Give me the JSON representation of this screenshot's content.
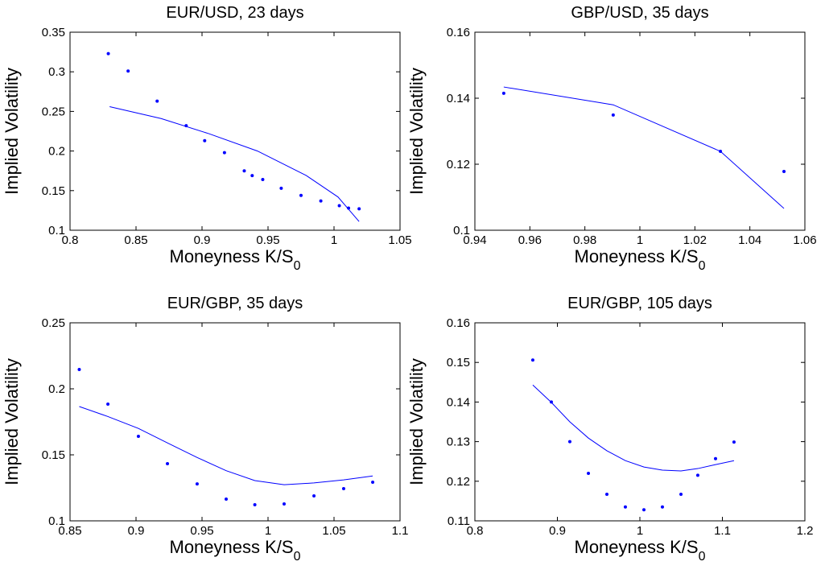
{
  "chart_data": [
    {
      "type": "scatter",
      "title": "EUR/USD, 23 days",
      "x_label": "Moneyness K/S",
      "x_label_subscript": "0",
      "y_label": "Implied Volatility",
      "xlim": [
        0.8,
        1.05
      ],
      "xticks": [
        0.8,
        0.85,
        0.9,
        0.95,
        1,
        1.05
      ],
      "ylim": [
        0.1,
        0.35
      ],
      "yticks": [
        0.1,
        0.15,
        0.2,
        0.25,
        0.3,
        0.35
      ],
      "series": [
        {
          "mode": "markers",
          "color": "#0000ff",
          "x": [
            0.829,
            0.844,
            0.866,
            0.888,
            0.902,
            0.917,
            0.932,
            0.938,
            0.946,
            0.96,
            0.975,
            0.99,
            1.004,
            1.011,
            1.019
          ],
          "values": [
            0.323,
            0.301,
            0.263,
            0.232,
            0.213,
            0.198,
            0.175,
            0.169,
            0.164,
            0.153,
            0.144,
            0.137,
            0.131,
            0.128,
            0.127
          ]
        },
        {
          "mode": "line",
          "color": "#0000ff",
          "x": [
            0.83,
            0.869,
            0.905,
            0.942,
            0.979,
            1.003,
            1.019
          ],
          "values": [
            0.256,
            0.241,
            0.222,
            0.2,
            0.169,
            0.142,
            0.111
          ]
        }
      ]
    },
    {
      "type": "scatter",
      "title": "GBP/USD, 35 days",
      "x_label": "Moneyness K/S",
      "x_label_subscript": "0",
      "y_label": "Implied Volatility",
      "xlim": [
        0.94,
        1.06
      ],
      "xticks": [
        0.94,
        0.96,
        0.98,
        1,
        1.02,
        1.04,
        1.06
      ],
      "ylim": [
        0.1,
        0.16
      ],
      "yticks": [
        0.1,
        0.12,
        0.14,
        0.16
      ],
      "series": [
        {
          "mode": "markers",
          "color": "#0000ff",
          "x": [
            0.9505,
            0.9903,
            1.0293,
            1.0524
          ],
          "values": [
            0.1415,
            0.1349,
            0.1239,
            0.1178
          ]
        },
        {
          "mode": "line",
          "color": "#0000ff",
          "x": [
            0.9505,
            0.9903,
            1.0293,
            1.0524
          ],
          "values": [
            0.1434,
            0.138,
            0.1239,
            0.1066
          ]
        }
      ]
    },
    {
      "type": "scatter",
      "title": "EUR/GBP, 35 days",
      "x_label": "Moneyness K/S",
      "x_label_subscript": "0",
      "y_label": "Implied Volatility",
      "xlim": [
        0.85,
        1.1
      ],
      "xticks": [
        0.85,
        0.9,
        0.95,
        1,
        1.05,
        1.1
      ],
      "ylim": [
        0.1,
        0.25
      ],
      "yticks": [
        0.1,
        0.15,
        0.2,
        0.25
      ],
      "series": [
        {
          "mode": "markers",
          "color": "#0000ff",
          "x": [
            0.857,
            0.8787,
            0.9018,
            0.9238,
            0.9463,
            0.9683,
            0.99,
            1.0122,
            1.0348,
            1.0573,
            1.0793
          ],
          "values": [
            0.2146,
            0.1884,
            0.164,
            0.1433,
            0.128,
            0.1165,
            0.1122,
            0.1128,
            0.1189,
            0.1244,
            0.1293
          ]
        },
        {
          "mode": "line",
          "color": "#0000ff",
          "x": [
            0.857,
            0.8787,
            0.9018,
            0.9238,
            0.9463,
            0.9683,
            0.99,
            1.0122,
            1.0348,
            1.0573,
            1.0793
          ],
          "values": [
            0.1866,
            0.179,
            0.17,
            0.159,
            0.148,
            0.138,
            0.1305,
            0.1274,
            0.1287,
            0.131,
            0.134
          ]
        }
      ]
    },
    {
      "type": "scatter",
      "title": "EUR/GBP, 105 days",
      "x_label": "Moneyness K/S",
      "x_label_subscript": "0",
      "y_label": "Implied Volatility",
      "xlim": [
        0.8,
        1.2
      ],
      "xticks": [
        0.8,
        0.9,
        1,
        1.1,
        1.2
      ],
      "ylim": [
        0.11,
        0.16
      ],
      "yticks": [
        0.11,
        0.12,
        0.13,
        0.14,
        0.15,
        0.16
      ],
      "series": [
        {
          "mode": "markers",
          "color": "#0000ff",
          "x": [
            0.8702,
            0.8927,
            0.9151,
            0.9376,
            0.96,
            0.9824,
            1.0049,
            1.0273,
            1.0498,
            1.0702,
            1.0917,
            1.1141
          ],
          "values": [
            0.1506,
            0.14,
            0.13,
            0.122,
            0.1167,
            0.1135,
            0.1128,
            0.1135,
            0.1167,
            0.1215,
            0.1257,
            0.1299
          ]
        },
        {
          "mode": "line",
          "color": "#0000ff",
          "x": [
            0.8702,
            0.8927,
            0.9151,
            0.9376,
            0.96,
            0.9824,
            1.0049,
            1.0273,
            1.0498,
            1.0702,
            1.0917,
            1.1141
          ],
          "values": [
            0.1443,
            0.1399,
            0.135,
            0.1309,
            0.1277,
            0.1252,
            0.1236,
            0.1228,
            0.1226,
            0.1232,
            0.1242,
            0.1252
          ]
        }
      ]
    }
  ]
}
